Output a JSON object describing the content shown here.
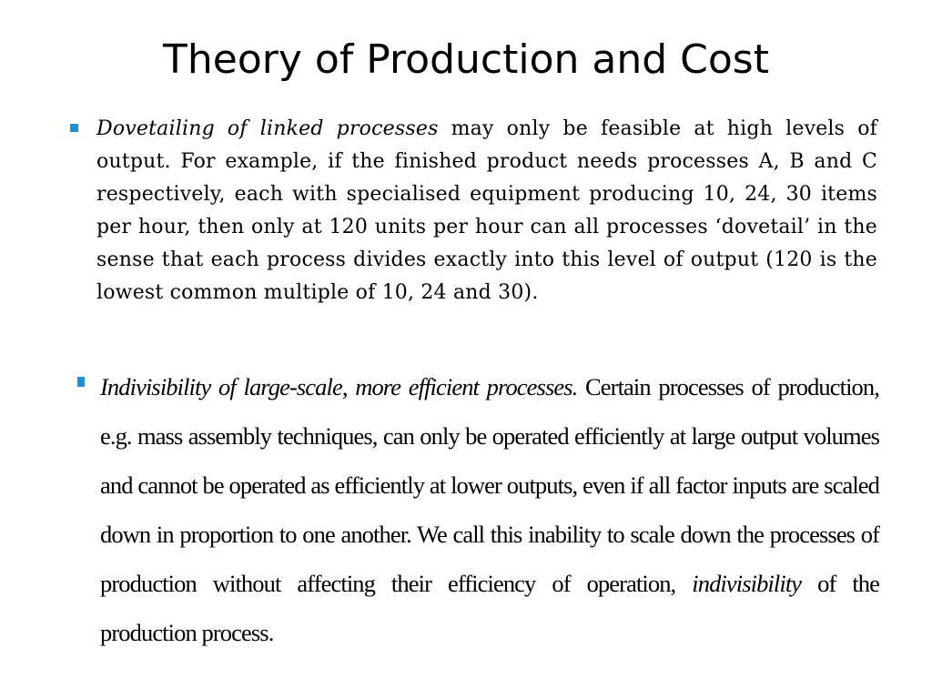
{
  "slide": {
    "title": "Theory of Production and Cost"
  },
  "bullets": [
    {
      "lead": "Dovetailing of linked processes",
      "text": " may only be feasible at high levels of output. For example, if the finished product needs processes A, B and C respectively, each with specialised equipment producing 10, 24, 30 items per hour, then only at 120 units per hour can all processes ‘dovetail’ in the sense that each process divides exactly into this level of output (120 is the lowest common multiple of 10, 24 and 30)."
    },
    {
      "lead": "Indivisibility of large-scale, more efficient processes.",
      "text": " Certain processes of production, e.g. mass assembly techniques, can only be operated efficiently at large output volumes and cannot be operated as efficiently at lower outputs, even if all factor inputs are scaled down in proportion to one another. We call this inability to scale down the processes of production without affecting their efficiency of operation, ",
      "term": "indivisibility",
      "tail": " of the production process."
    }
  ],
  "colors": {
    "bullet": "#1e90d6",
    "text": "#000000",
    "background": "#ffffff"
  }
}
